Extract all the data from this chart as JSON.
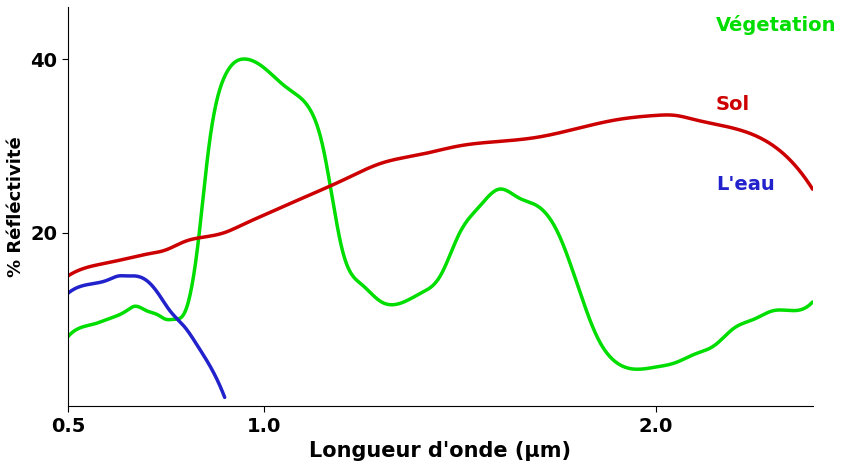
{
  "xlabel": "Longueur d'onde (μm)",
  "ylabel": "% Réfléctivité",
  "xlim": [
    0.5,
    2.4
  ],
  "ylim": [
    0,
    46
  ],
  "yticks": [
    20,
    40
  ],
  "xticks": [
    0.5,
    1.0,
    2.0
  ],
  "background_color": "#ffffff",
  "legend": [
    {
      "label": "Végetation",
      "color": "#00dd00"
    },
    {
      "label": "Sol",
      "color": "#cc0000"
    },
    {
      "label": "L'eau",
      "color": "#2222cc"
    }
  ],
  "vegetation_x": [
    0.5,
    0.53,
    0.57,
    0.6,
    0.63,
    0.65,
    0.67,
    0.7,
    0.73,
    0.75,
    0.77,
    0.8,
    0.83,
    0.86,
    0.9,
    0.95,
    1.0,
    1.05,
    1.08,
    1.12,
    1.15,
    1.2,
    1.25,
    1.3,
    1.4,
    1.45,
    1.5,
    1.55,
    1.6,
    1.65,
    1.7,
    1.75,
    1.8,
    1.85,
    1.9,
    2.0,
    2.05,
    2.1,
    2.15,
    2.2,
    2.25,
    2.3,
    2.35,
    2.4
  ],
  "vegetation_y": [
    8,
    9,
    9.5,
    10,
    10.5,
    11,
    11.5,
    11,
    10.5,
    10,
    10,
    11,
    18,
    30,
    38,
    40,
    39,
    37,
    36,
    34,
    30,
    18,
    14,
    12,
    13,
    15,
    20,
    23,
    25,
    24,
    23,
    20,
    14,
    8,
    5,
    4.5,
    5,
    6,
    7,
    9,
    10,
    11,
    11,
    12
  ],
  "soil_x": [
    0.5,
    0.55,
    0.6,
    0.65,
    0.7,
    0.75,
    0.8,
    0.85,
    0.9,
    0.95,
    1.0,
    1.1,
    1.2,
    1.3,
    1.4,
    1.5,
    1.6,
    1.7,
    1.8,
    1.9,
    2.0,
    2.05,
    2.1,
    2.2,
    2.3,
    2.4
  ],
  "soil_y": [
    15,
    16,
    16.5,
    17,
    17.5,
    18,
    19,
    19.5,
    20,
    21,
    22,
    24,
    26,
    28,
    29,
    30,
    30.5,
    31,
    32,
    33,
    33.5,
    33.5,
    33,
    32,
    30,
    25
  ],
  "water_x": [
    0.5,
    0.55,
    0.6,
    0.63,
    0.65,
    0.67,
    0.7,
    0.73,
    0.76,
    0.8,
    0.83,
    0.87,
    0.9
  ],
  "water_y": [
    13,
    14,
    14.5,
    15,
    15,
    15,
    14.5,
    13,
    11,
    9,
    7,
    4,
    1
  ],
  "line_width": 2.5
}
